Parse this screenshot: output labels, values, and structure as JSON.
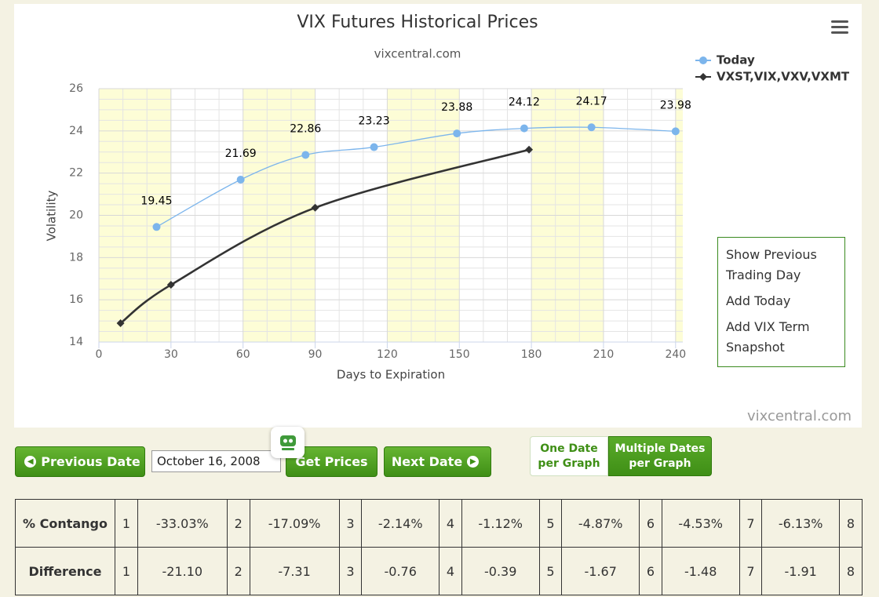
{
  "chart_data": {
    "type": "line",
    "title": "VIX Futures Historical Prices",
    "subtitle": "vixcentral.com",
    "x_label": "Days to Expiration",
    "y_label": "Volatility",
    "credits": "vixcentral.com",
    "xlim": [
      0,
      243
    ],
    "xticks": [
      0,
      30,
      60,
      90,
      120,
      150,
      180,
      210,
      240
    ],
    "ylim": [
      14,
      26
    ],
    "yticks": [
      14,
      16,
      18,
      20,
      22,
      24,
      26
    ],
    "grid": true,
    "series": [
      {
        "name": "Today",
        "color": "#7cb5ec",
        "marker": "circle",
        "data_labels": true,
        "x": [
          24,
          59,
          86,
          114.5,
          149,
          177,
          205,
          240
        ],
        "values": [
          19.45,
          21.69,
          22.86,
          23.23,
          23.88,
          24.12,
          24.17,
          23.98
        ]
      },
      {
        "name": "VXST,VIX,VXV,VXMT",
        "color": "#333333",
        "marker": "diamond",
        "data_labels": false,
        "x": [
          9,
          30,
          90,
          179
        ],
        "values": [
          14.89,
          16.71,
          20.36,
          23.11
        ]
      }
    ]
  },
  "menu": {
    "items": [
      "Show Previous Trading Day",
      "Add Today",
      "Add VIX Term Snapshot"
    ]
  },
  "controls": {
    "previous": "Previous Date",
    "date": "October 16, 2008",
    "get": "Get Prices",
    "next": "Next Date",
    "one_per_graph": "One Date per Graph",
    "multiple_per_graph": "Multiple Dates per Graph"
  },
  "table": {
    "rows": [
      [
        "% Contango",
        "1",
        "-33.03%",
        "2",
        "-17.09%",
        "3",
        "-2.14%",
        "4",
        "-1.12%",
        "5",
        "-4.87%",
        "6",
        "-4.53%",
        "7",
        "-6.13%",
        "8"
      ],
      [
        "Difference",
        "1",
        "-21.10",
        "2",
        "-7.31",
        "3",
        "-0.76",
        "4",
        "-0.39",
        "5",
        "-1.67",
        "6",
        "-1.48",
        "7",
        "-1.91",
        "8"
      ]
    ]
  }
}
